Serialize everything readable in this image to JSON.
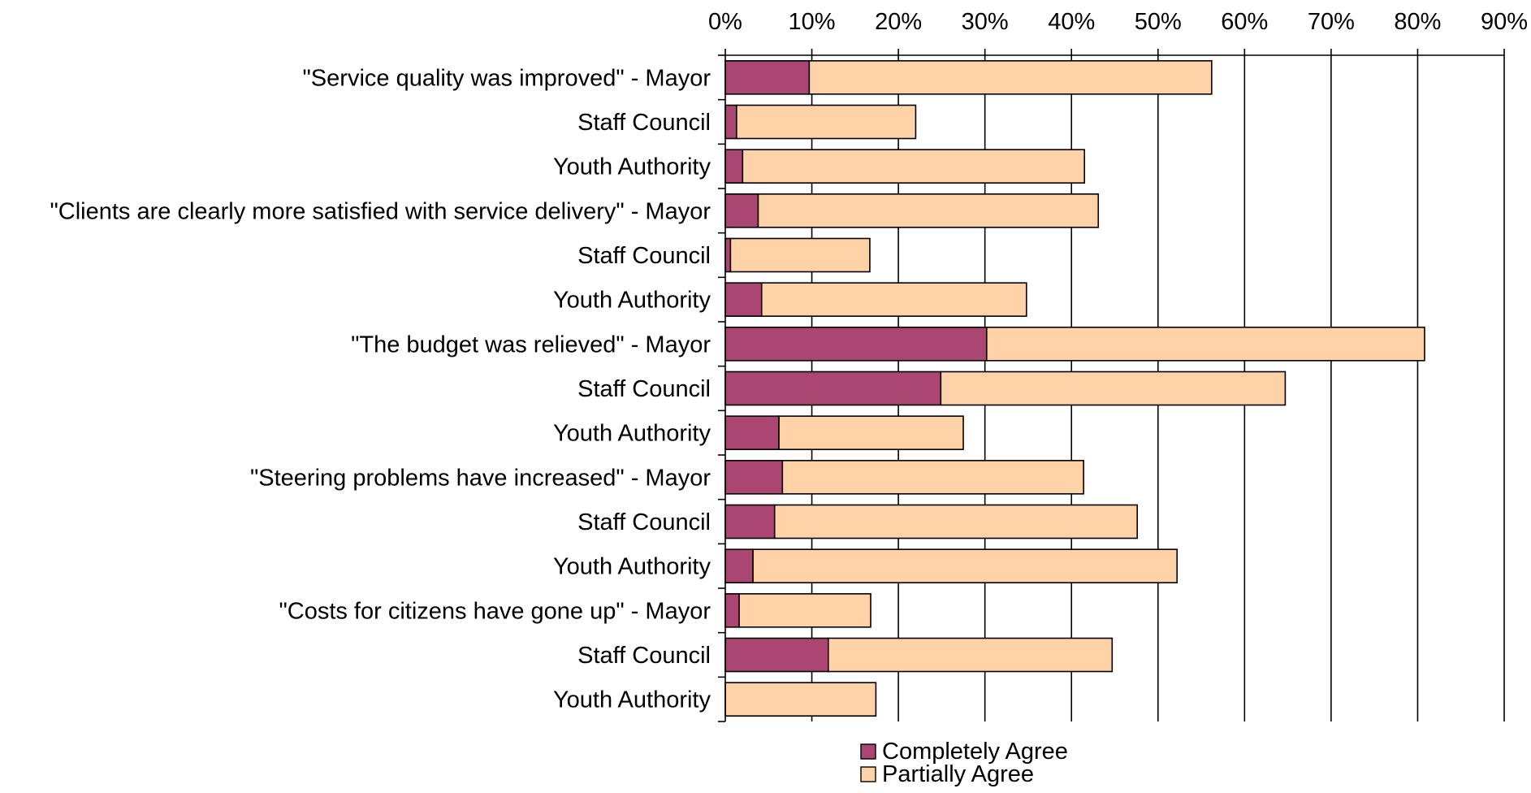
{
  "chart_data": {
    "type": "bar",
    "orientation": "horizontal",
    "stacked": true,
    "categories": [
      "\"Service quality was improved\" - Mayor",
      "Staff Council",
      "Youth Authority",
      "\"Clients are clearly more satisfied with service delivery\" - Mayor",
      "Staff Council",
      "Youth Authority",
      "\"The budget was relieved\" - Mayor",
      "Staff Council",
      "Youth Authority",
      "\"Steering problems have increased\" - Mayor",
      "Staff Council",
      "Youth Authority",
      "\"Costs for citizens have gone up\" - Mayor",
      "Staff Council",
      "Youth Authority"
    ],
    "series": [
      {
        "name": "Completely Agree",
        "color": "#ab4572",
        "values": [
          9.7,
          1.3,
          2.0,
          3.8,
          0.6,
          4.2,
          30.2,
          24.9,
          6.2,
          6.6,
          5.7,
          3.2,
          1.6,
          11.9,
          0.0
        ]
      },
      {
        "name": "Partially Agree",
        "color": "#ffd3a7",
        "values": [
          46.5,
          20.7,
          39.5,
          39.3,
          16.1,
          30.6,
          50.6,
          39.8,
          21.3,
          34.8,
          41.9,
          49.0,
          15.2,
          32.8,
          17.4
        ]
      }
    ],
    "xlim": [
      0,
      90
    ],
    "xticks": [
      0,
      10,
      20,
      30,
      40,
      50,
      60,
      70,
      80,
      90
    ],
    "tick_suffix": "%",
    "x_axis_position": "top",
    "grid": "vertical",
    "legend": "bottom",
    "title": "",
    "xlabel": "",
    "ylabel": ""
  }
}
